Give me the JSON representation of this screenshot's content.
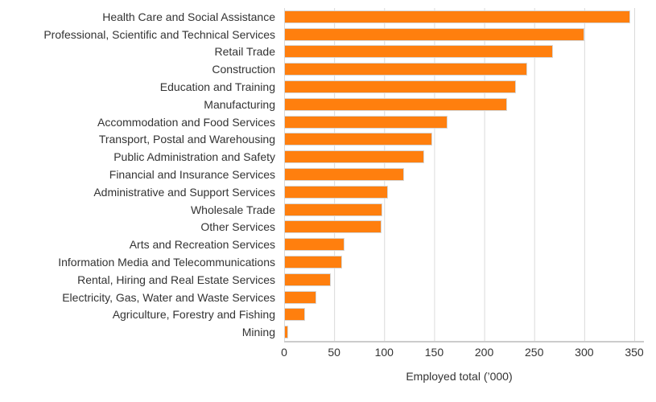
{
  "chart_data": {
    "type": "bar",
    "orientation": "horizontal",
    "title": "",
    "xlabel": "Employed total (’000)",
    "ylabel": "",
    "xlim": [
      0,
      350
    ],
    "x_ticks": [
      0,
      50,
      100,
      150,
      200,
      250,
      300,
      350
    ],
    "grid": "vertical",
    "legend": "none",
    "bar_color": "#FF7F0E",
    "bar_border_color": "#d6d6d6",
    "gridline_color": "#dadada",
    "text_color": "#333333",
    "categories": [
      "Health Care and Social Assistance",
      "Professional, Scientific and Technical Services",
      "Retail Trade",
      "Construction",
      "Education and Training",
      "Manufacturing",
      "Accommodation and Food Services",
      "Transport, Postal and Warehousing",
      "Public Administration and Safety",
      "Financial and Insurance Services",
      "Administrative and Support Services",
      "Wholesale Trade",
      "Other Services",
      "Arts and Recreation Services",
      "Information Media and Telecommunications",
      "Rental, Hiring and Real Estate Services",
      "Electricity, Gas, Water and Waste Services",
      "Agriculture, Forestry and Fishing",
      "Mining"
    ],
    "values": [
      346,
      300,
      269,
      243,
      232,
      223,
      163,
      148,
      140,
      120,
      104,
      98,
      97,
      60,
      58,
      47,
      32,
      21,
      4
    ]
  }
}
